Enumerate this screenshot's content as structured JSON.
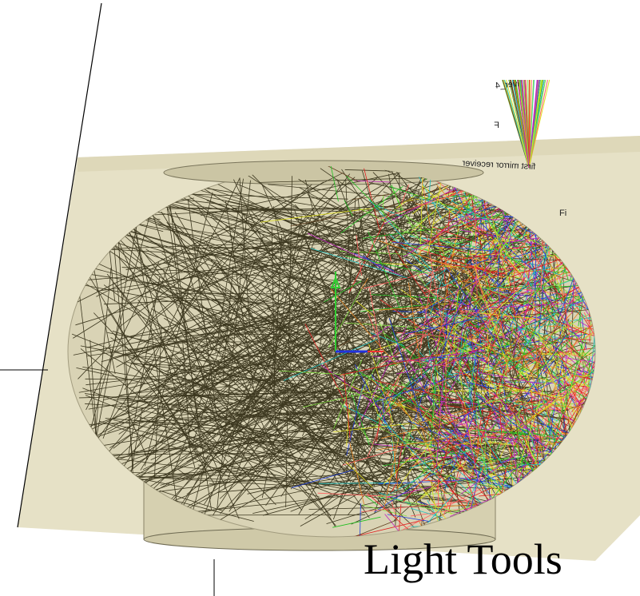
{
  "caption": "Light Tools",
  "labels": {
    "receiver": "iver_4",
    "focus": "F",
    "mirror": "first mirror receiver",
    "side": "Fi"
  }
}
